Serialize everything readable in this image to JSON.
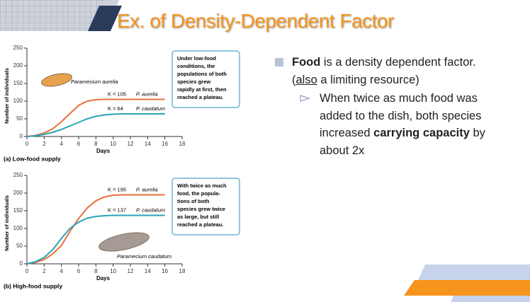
{
  "slide": {
    "title": "Ex. of Density-Dependent Factor",
    "bullet": {
      "bold": "Food",
      "text": " is a density dependent factor."
    },
    "bullet_line2": {
      "underlined": "also",
      "before": "(",
      "after": " a limiting resource)"
    },
    "sub_bullet": {
      "before": "When twice as much food was added to the dish, both species increased ",
      "bold": "carrying capacity",
      "after": " by about 2x"
    }
  },
  "chart_data": [
    {
      "type": "line",
      "y_label": "Number of individuals",
      "x_label": "Days",
      "caption": "(a) Low-food supply",
      "xlim": [
        0,
        18
      ],
      "xticks": [
        0,
        2,
        4,
        6,
        8,
        10,
        12,
        14,
        16,
        18
      ],
      "ylim": [
        0,
        250
      ],
      "yticks": [
        0,
        50,
        100,
        150,
        200,
        250
      ],
      "x": [
        0,
        1,
        2,
        3,
        4,
        5,
        6,
        7,
        8,
        9,
        10,
        11,
        12,
        13,
        14,
        15,
        16
      ],
      "series": [
        {
          "name": "P. aurelia",
          "color": "#e8703a",
          "values": [
            0,
            3,
            10,
            22,
            42,
            65,
            88,
            100,
            104,
            105,
            105,
            105,
            105,
            105,
            105,
            105,
            105
          ]
        },
        {
          "name": "P. caudatum",
          "color": "#2aa3b5",
          "values": [
            0,
            2,
            6,
            12,
            20,
            30,
            40,
            50,
            57,
            61,
            63,
            64,
            64,
            64,
            64,
            64,
            64
          ]
        }
      ],
      "annotations": [
        "K = 105",
        "K = 64"
      ],
      "image_label": "Paramecium aurelia",
      "note": [
        "Under low-food",
        "conditions, the",
        "populations of both",
        "species grew",
        "rapidly at first, then",
        "reached a plateau."
      ]
    },
    {
      "type": "line",
      "y_label": "Number of individuals",
      "x_label": "Days",
      "caption": "(b) High-food supply",
      "xlim": [
        0,
        18
      ],
      "xticks": [
        0,
        2,
        4,
        6,
        8,
        10,
        12,
        14,
        16,
        18
      ],
      "ylim": [
        0,
        250
      ],
      "yticks": [
        0,
        50,
        100,
        150,
        200,
        250
      ],
      "x": [
        0,
        1,
        2,
        3,
        4,
        5,
        6,
        7,
        8,
        9,
        10,
        11,
        12,
        13,
        14,
        15,
        16
      ],
      "series": [
        {
          "name": "P. aurelia",
          "color": "#e8703a",
          "values": [
            0,
            4,
            12,
            28,
            52,
            92,
            128,
            158,
            178,
            189,
            194,
            195,
            195,
            195,
            195,
            195,
            195
          ]
        },
        {
          "name": "P. caudatum",
          "color": "#2aa3b5",
          "values": [
            0,
            6,
            18,
            40,
            72,
            100,
            118,
            129,
            134,
            136,
            137,
            137,
            137,
            137,
            137,
            137,
            137
          ]
        }
      ],
      "annotations": [
        "K = 195",
        "K = 137"
      ],
      "image_label": "Paramecium caudatum",
      "note": [
        "With twice as much",
        "food, the popula-",
        "tions of both",
        "species grew twice",
        "as large, but still",
        "reached a plateau."
      ]
    }
  ]
}
